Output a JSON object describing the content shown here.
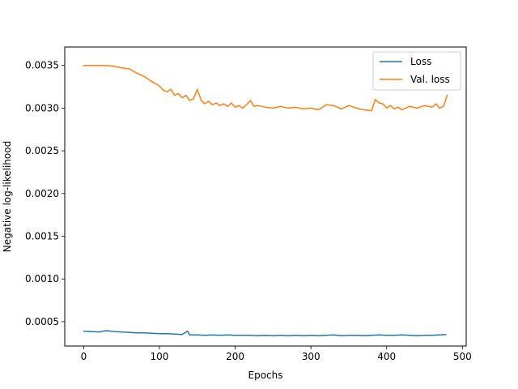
{
  "chart_data": {
    "type": "line",
    "title": "",
    "xlabel": "Epochs",
    "ylabel": "Negative log-likelihood",
    "xlim": [
      -25,
      505
    ],
    "ylim": [
      0.000215,
      0.003715
    ],
    "xticks": [
      0,
      100,
      200,
      300,
      400,
      500
    ],
    "xtick_labels": [
      "0",
      "100",
      "200",
      "300",
      "400",
      "500"
    ],
    "yticks": [
      0.0005,
      0.001,
      0.0015,
      0.002,
      0.0025,
      0.003,
      0.0035
    ],
    "ytick_labels": [
      "0.0005",
      "0.0010",
      "0.0015",
      "0.0020",
      "0.0025",
      "0.0030",
      "0.0035"
    ],
    "grid": false,
    "legend_position": "top-right",
    "series": [
      {
        "name": "Loss",
        "color": "#1f77b4",
        "x": [
          0,
          10,
          20,
          30,
          40,
          50,
          60,
          70,
          80,
          90,
          100,
          110,
          120,
          130,
          137,
          140,
          150,
          160,
          170,
          180,
          190,
          200,
          210,
          220,
          230,
          240,
          250,
          260,
          270,
          280,
          290,
          300,
          310,
          320,
          330,
          340,
          350,
          360,
          370,
          380,
          390,
          400,
          410,
          420,
          430,
          440,
          450,
          460,
          470,
          478
        ],
        "y": [
          0.00039,
          0.000385,
          0.00038,
          0.000395,
          0.000385,
          0.00038,
          0.000375,
          0.00037,
          0.00037,
          0.000365,
          0.00036,
          0.00036,
          0.000355,
          0.00035,
          0.00039,
          0.000345,
          0.000345,
          0.00034,
          0.000345,
          0.00034,
          0.000345,
          0.00034,
          0.00034,
          0.00034,
          0.000335,
          0.00034,
          0.000335,
          0.00034,
          0.000335,
          0.00034,
          0.000335,
          0.00034,
          0.000335,
          0.00034,
          0.000345,
          0.000335,
          0.00034,
          0.00034,
          0.000335,
          0.00034,
          0.000345,
          0.00034,
          0.00034,
          0.000345,
          0.00034,
          0.000335,
          0.00034,
          0.00034,
          0.000345,
          0.00035
        ]
      },
      {
        "name": "Val. loss",
        "color": "#ff7f0e",
        "x": [
          0,
          10,
          20,
          30,
          40,
          50,
          60,
          70,
          80,
          90,
          100,
          105,
          110,
          115,
          120,
          125,
          130,
          135,
          140,
          145,
          150,
          155,
          160,
          165,
          170,
          175,
          180,
          185,
          190,
          195,
          200,
          205,
          210,
          215,
          220,
          225,
          230,
          240,
          250,
          260,
          270,
          280,
          290,
          300,
          310,
          320,
          330,
          340,
          350,
          360,
          370,
          380,
          385,
          390,
          395,
          400,
          405,
          410,
          415,
          420,
          425,
          430,
          440,
          450,
          460,
          465,
          470,
          475,
          480
        ],
        "y": [
          0.0035,
          0.0035,
          0.0035,
          0.0035,
          0.00349,
          0.00347,
          0.00346,
          0.00341,
          0.00337,
          0.00331,
          0.00326,
          0.00321,
          0.00319,
          0.00322,
          0.00315,
          0.00317,
          0.00312,
          0.00315,
          0.00309,
          0.00311,
          0.00322,
          0.00309,
          0.00305,
          0.00308,
          0.00304,
          0.00306,
          0.00303,
          0.00305,
          0.00302,
          0.00306,
          0.00301,
          0.00303,
          0.003,
          0.00304,
          0.00309,
          0.00302,
          0.00303,
          0.00301,
          0.003,
          0.00302,
          0.003,
          0.00301,
          0.00299,
          0.003,
          0.00298,
          0.00304,
          0.00303,
          0.00299,
          0.00303,
          0.003,
          0.00298,
          0.00297,
          0.0031,
          0.00306,
          0.00305,
          0.003,
          0.00303,
          0.00299,
          0.00301,
          0.00298,
          0.003,
          0.00302,
          0.003,
          0.00303,
          0.00301,
          0.00305,
          0.003,
          0.00302,
          0.00315
        ]
      }
    ]
  }
}
